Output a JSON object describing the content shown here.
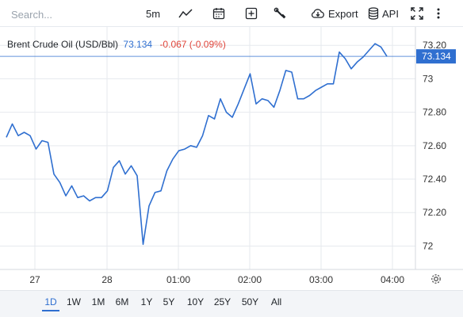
{
  "toolbar": {
    "search_placeholder": "Search...",
    "interval": "5m",
    "export_label": "Export",
    "api_label": "API",
    "icons": [
      "line-chart-icon",
      "calendar-icon",
      "add-indicator-icon",
      "wrench-icon",
      "cloud-download-icon",
      "database-icon",
      "fullscreen-icon",
      "more-icon"
    ]
  },
  "legend": {
    "name": "Brent Crude Oil (USD/Bbl)",
    "price": "73.134",
    "change": "-0.067 (-0.09%)"
  },
  "colors": {
    "line": "#2f6fd0",
    "change_negative": "#e0453a",
    "grid": "#e6e9ee",
    "range_bar": "#f3f5f8"
  },
  "chart_data": {
    "type": "line",
    "series": [
      {
        "values": [
          72.65,
          72.73,
          72.66,
          72.68,
          72.66,
          72.58,
          72.63,
          72.62,
          72.43,
          72.38,
          72.3,
          72.36,
          72.29,
          72.3,
          72.27,
          72.29,
          72.29,
          72.33,
          72.47,
          72.51,
          72.43,
          72.48,
          72.42,
          72.01,
          72.24,
          72.32,
          72.33,
          72.45,
          72.52,
          72.57,
          72.58,
          72.6,
          72.59,
          72.66,
          72.78,
          72.76,
          72.88,
          72.8,
          72.77,
          72.85,
          72.94,
          73.03,
          72.85,
          72.88,
          72.87,
          72.83,
          72.93,
          73.05,
          73.04,
          72.88,
          72.88,
          72.9,
          72.93,
          72.95,
          72.97,
          72.97,
          73.16,
          73.12,
          73.06,
          73.1,
          73.13,
          73.17,
          73.21,
          73.19,
          73.134
        ]
      }
    ],
    "yticks": [
      "73.20",
      "73",
      "72.80",
      "72.60",
      "72.40",
      "72.20",
      "72"
    ],
    "ylim": [
      71.86,
      73.31
    ],
    "xticks": [
      "27",
      "28",
      "01:00",
      "02:00",
      "03:00",
      "04:00"
    ],
    "last_price_label": "73.134",
    "grid": true
  },
  "ranges": {
    "items": [
      "1D",
      "1W",
      "1M",
      "6M",
      "1Y",
      "5Y",
      "10Y",
      "25Y",
      "50Y",
      "All"
    ],
    "active": "1D"
  }
}
